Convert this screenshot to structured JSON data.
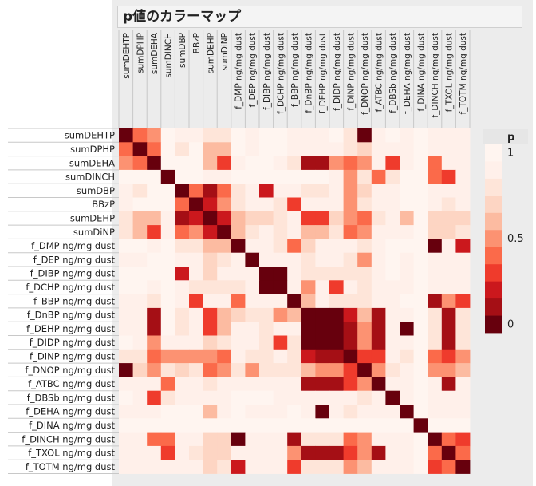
{
  "title": "p値のカラーマップ",
  "chart_data": {
    "type": "heatmap",
    "title": "p値のカラーマップ",
    "variables": [
      "sumDEHTP",
      "sumDPHP",
      "sumDEHA",
      "sumDINCH",
      "sumDBP",
      "BBzP",
      "sumDEHP",
      "sumDiNP",
      "f_DMP ng/mg dust",
      "f_DEP ng/mg dust",
      "f_DIBP ng/mg dust",
      "f_DCHP ng/mg dust",
      "f_BBP ng/mg dust",
      "f_DnBP ng/mg dust",
      "f_DEHP ng/mg dust",
      "f_DIDP ng/mg dust",
      "f_DINP ng/mg dust",
      "f_DNOP ng/mg dust",
      "f_ATBC ng/mg dust",
      "f_DBSb ng/mg dust",
      "f_DEHA ng/mg dust",
      "f_DINA ng/mg dust",
      "f_DINCH ng/mg dust",
      "f_TXOL ng/mg dust",
      "f_TOTM ng/mg dust"
    ],
    "colorbar": {
      "title": "p",
      "ticks": [
        1,
        0.5,
        0
      ],
      "range": [
        0,
        1
      ],
      "low_color": "#67000d",
      "high_color": "#fff5f0",
      "steps": 10
    },
    "values": [
      [
        0,
        0.4,
        0.5,
        1,
        0.9,
        0.9,
        0.8,
        0.8,
        1,
        0.9,
        1,
        1,
        0.9,
        0.9,
        0.9,
        1,
        0.8,
        0,
        0.9,
        1,
        0.9,
        1,
        0.9,
        0.9,
        0.9
      ],
      [
        0.4,
        0,
        0.4,
        1,
        0.8,
        1,
        0.6,
        0.6,
        1,
        0.9,
        1,
        1,
        0.9,
        0.9,
        0.9,
        0.9,
        0.8,
        0.7,
        0.9,
        0.9,
        0.9,
        1,
        0.9,
        0.9,
        0.9
      ],
      [
        0.5,
        0.4,
        0,
        1,
        1,
        1,
        0.6,
        0.3,
        0.9,
        1,
        1,
        0.9,
        0.8,
        0.1,
        0.1,
        0.5,
        0.4,
        0.5,
        0.9,
        0.3,
        0.9,
        1,
        0.4,
        0.9,
        0.9
      ],
      [
        1,
        1,
        1,
        0,
        1,
        1,
        0.9,
        0.9,
        1,
        1,
        1,
        1,
        1,
        1,
        1,
        0.9,
        0.5,
        0.8,
        0.4,
        0.8,
        1,
        1,
        0.4,
        0.3,
        0.9
      ],
      [
        0.9,
        0.8,
        1,
        1,
        0,
        0.4,
        0.1,
        0.4,
        0.8,
        0.9,
        0.2,
        0.9,
        0.9,
        0.8,
        0.8,
        0.9,
        0.5,
        0.7,
        0.9,
        0.9,
        1,
        1,
        0.9,
        0.9,
        0.9
      ],
      [
        0.9,
        1,
        1,
        1,
        0.4,
        0,
        0.2,
        0.5,
        0.8,
        0.9,
        0.9,
        0.8,
        0.3,
        0.9,
        0.9,
        0.9,
        0.5,
        0.8,
        0.9,
        0.9,
        1,
        1,
        0.9,
        0.8,
        0.9
      ],
      [
        0.8,
        0.6,
        0.6,
        0.9,
        0.1,
        0.2,
        0,
        0.2,
        0.6,
        0.7,
        0.7,
        0.8,
        0.9,
        0.3,
        0.3,
        0.7,
        0.5,
        0.4,
        0.8,
        0.9,
        0.6,
        1,
        0.7,
        0.7,
        0.7
      ],
      [
        0.8,
        0.6,
        0.3,
        0.9,
        0.4,
        0.5,
        0.2,
        0,
        0.6,
        0.8,
        0.9,
        0.8,
        0.9,
        0.6,
        0.6,
        0.8,
        0.4,
        0.5,
        0.9,
        0.9,
        0.9,
        1,
        0.7,
        0.7,
        0.8
      ],
      [
        1,
        1,
        0.9,
        1,
        0.8,
        0.8,
        0.6,
        0.6,
        0,
        0.9,
        0.9,
        0.8,
        0.4,
        0.7,
        0.9,
        0.9,
        0.9,
        0.8,
        0.9,
        1,
        1,
        1,
        0,
        0.9,
        0.2
      ],
      [
        0.9,
        0.9,
        1,
        1,
        0.9,
        0.9,
        0.7,
        0.8,
        0.9,
        0,
        0.9,
        0.9,
        0.9,
        0.8,
        0.9,
        0.9,
        0.8,
        0.5,
        0.9,
        1,
        0.9,
        1,
        0.9,
        0.9,
        0.9
      ],
      [
        1,
        1,
        1,
        1,
        0.2,
        0.9,
        0.7,
        0.9,
        0.9,
        0.9,
        0,
        0,
        0.9,
        0.8,
        0.8,
        0.8,
        0.8,
        0.8,
        0.9,
        1,
        0.9,
        1,
        0.9,
        0.9,
        0.9
      ],
      [
        1,
        1,
        0.9,
        1,
        0.9,
        0.8,
        0.8,
        0.8,
        0.8,
        0.9,
        0,
        0,
        0.9,
        0.5,
        0.9,
        0.3,
        0.9,
        0.8,
        0.9,
        0.9,
        0.9,
        1,
        0.9,
        0.9,
        0.9
      ],
      [
        0.9,
        0.9,
        0.8,
        1,
        0.9,
        0.3,
        0.9,
        0.9,
        0.4,
        0.9,
        0.9,
        0.9,
        0,
        0.6,
        0.9,
        0.8,
        0.8,
        0.8,
        0.9,
        0.9,
        1,
        1,
        0.1,
        0.5,
        0.3
      ],
      [
        0.9,
        0.9,
        0.1,
        1,
        0.8,
        0.9,
        0.3,
        0.6,
        0.7,
        0.8,
        0.8,
        0.5,
        0.6,
        0,
        0,
        0,
        0.2,
        0.6,
        0.1,
        0.9,
        0.9,
        1,
        0.8,
        0.1,
        0.8
      ],
      [
        0.9,
        0.9,
        0.1,
        1,
        0.8,
        0.9,
        0.3,
        0.6,
        0.9,
        0.9,
        0.8,
        0.9,
        0.9,
        0,
        0,
        0,
        0.1,
        0.5,
        0.1,
        0.9,
        0,
        1,
        0.8,
        0.1,
        0.8
      ],
      [
        1,
        0.9,
        0.5,
        0.9,
        0.9,
        0.9,
        0.7,
        0.8,
        0.9,
        0.9,
        0.8,
        0.3,
        0.8,
        0,
        0,
        0,
        0.1,
        0.5,
        0.1,
        0.9,
        0.9,
        1,
        0.8,
        0.1,
        0.8
      ],
      [
        0.8,
        0.8,
        0.4,
        0.5,
        0.5,
        0.5,
        0.5,
        0.4,
        0.9,
        0.8,
        0.8,
        0.9,
        0.8,
        0.2,
        0.1,
        0.1,
        0,
        0.3,
        0.3,
        0.9,
        0.8,
        1,
        0.4,
        0.3,
        0.5
      ],
      [
        0,
        0.7,
        0.5,
        0.8,
        0.7,
        0.8,
        0.4,
        0.5,
        0.8,
        0.5,
        0.8,
        0.8,
        0.8,
        0.6,
        0.5,
        0.5,
        0.3,
        0,
        0.5,
        0.8,
        0.9,
        1,
        0.5,
        0.5,
        0.6
      ],
      [
        0.9,
        0.9,
        0.9,
        0.4,
        0.9,
        0.9,
        0.8,
        0.9,
        0.9,
        0.9,
        0.9,
        0.9,
        0.9,
        0.1,
        0.1,
        0.1,
        0.3,
        0.5,
        0,
        0.9,
        0.9,
        1,
        0.9,
        0.1,
        0.9
      ],
      [
        1,
        0.9,
        0.3,
        0.8,
        0.9,
        0.9,
        0.9,
        0.9,
        1,
        1,
        1,
        0.9,
        0.9,
        0.9,
        0.9,
        0.9,
        0.9,
        0.8,
        0.9,
        0,
        0.9,
        1,
        0.9,
        0.9,
        0.9
      ],
      [
        0.9,
        0.9,
        0.9,
        1,
        1,
        1,
        0.6,
        0.9,
        1,
        0.9,
        0.9,
        0.9,
        1,
        0.9,
        0,
        0.9,
        0.8,
        0.9,
        0.9,
        0.9,
        0,
        1,
        0.9,
        0.9,
        0.9
      ],
      [
        1,
        1,
        1,
        1,
        1,
        1,
        1,
        1,
        1,
        1,
        1,
        1,
        1,
        1,
        1,
        1,
        1,
        1,
        1,
        1,
        1,
        0,
        1,
        1,
        1
      ],
      [
        0.9,
        0.9,
        0.4,
        0.4,
        0.9,
        0.9,
        0.7,
        0.7,
        0,
        0.9,
        0.9,
        0.9,
        0.1,
        0.8,
        0.8,
        0.8,
        0.4,
        0.5,
        0.9,
        0.9,
        0.9,
        1,
        0,
        0.4,
        0.3
      ],
      [
        0.9,
        0.9,
        0.9,
        0.3,
        0.9,
        0.8,
        0.7,
        0.7,
        0.9,
        0.9,
        0.9,
        0.9,
        0.5,
        0.1,
        0.1,
        0.1,
        0.3,
        0.5,
        0.1,
        0.9,
        0.9,
        1,
        0.4,
        0,
        0.4
      ],
      [
        0.9,
        0.9,
        0.9,
        0.9,
        0.9,
        0.9,
        0.7,
        0.8,
        0.2,
        0.9,
        0.9,
        0.9,
        0.3,
        0.8,
        0.8,
        0.8,
        0.5,
        0.6,
        0.9,
        0.9,
        0.9,
        1,
        0.3,
        0.4,
        0
      ]
    ]
  }
}
